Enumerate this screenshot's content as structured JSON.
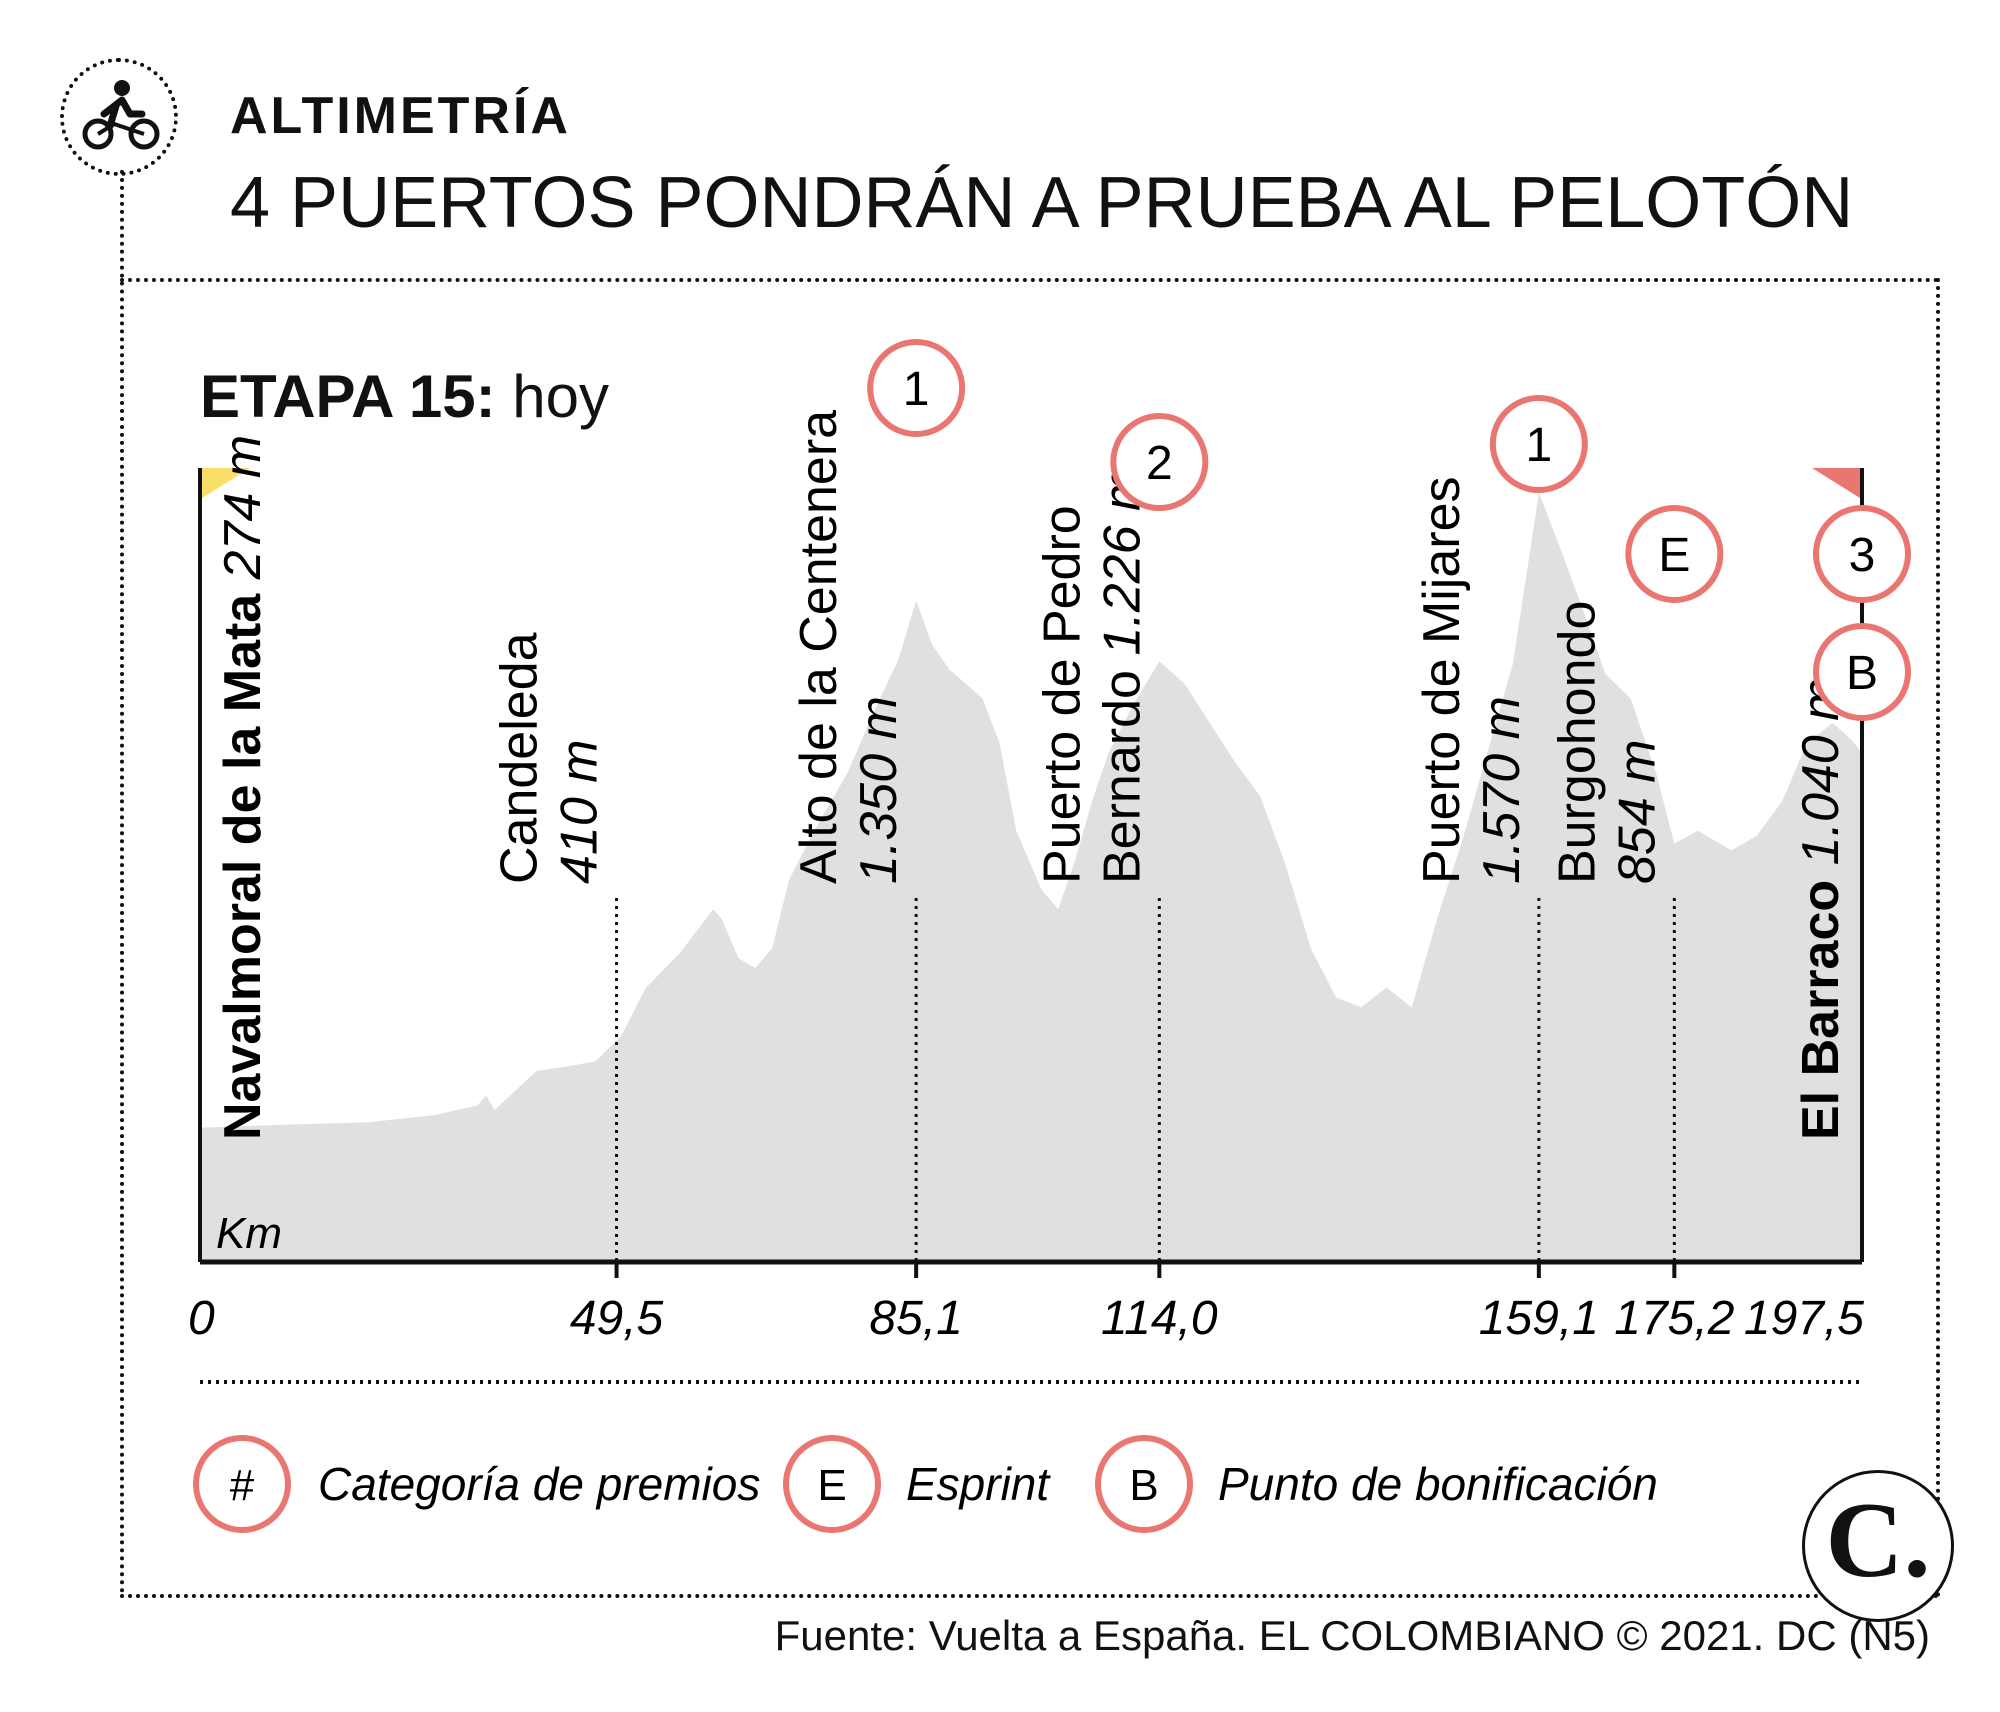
{
  "header": {
    "kicker": "ALTIMETRÍA",
    "headline": "4 PUERTOS PONDRÁN A PRUEBA AL PELOTÓN",
    "stage_label": "ETAPA 15:",
    "stage_when": "hoy",
    "icon": "cyclist-icon"
  },
  "source": "Fuente: Vuelta a España. EL COLOMBIANO © 2021. DC (N5)",
  "logo_text": "C.",
  "colors": {
    "profile_fill": "#dfe0e1",
    "badge": "#ea7672",
    "start_flag": "#f9de67",
    "finish_flag": "#ea7672"
  },
  "chart_data": {
    "type": "area",
    "title": "ETAPA 15: hoy",
    "xlabel": "Km",
    "ylabel": "",
    "xlim": [
      0,
      197.5
    ],
    "ylim": [
      0,
      1600
    ],
    "grid": false,
    "x_ticks": [
      "0",
      "49,5",
      "85,1",
      "114,0",
      "159,1",
      "175,2",
      "197,5"
    ],
    "profile": {
      "x": [
        0,
        10,
        20,
        28,
        33,
        34,
        35,
        40,
        44,
        47,
        50,
        53,
        57,
        61,
        62,
        64,
        66,
        68,
        70,
        73,
        77,
        80,
        83,
        85.1,
        87,
        89,
        91,
        93,
        95,
        97,
        100,
        102,
        104,
        106,
        108,
        111,
        114,
        117,
        120,
        123,
        126,
        129,
        132,
        135,
        138,
        141,
        144,
        147,
        150,
        153,
        156,
        159.1,
        162,
        165,
        167,
        170,
        173,
        175.2,
        178,
        182,
        185,
        188,
        191,
        194,
        196,
        197.5
      ],
      "y": [
        274,
        280,
        285,
        300,
        320,
        340,
        310,
        390,
        400,
        410,
        460,
        560,
        630,
        720,
        700,
        620,
        600,
        640,
        780,
        880,
        1000,
        1120,
        1230,
        1350,
        1260,
        1210,
        1180,
        1150,
        1060,
        880,
        760,
        720,
        820,
        940,
        1040,
        1140,
        1226,
        1180,
        1100,
        1020,
        950,
        810,
        640,
        540,
        520,
        560,
        520,
        700,
        860,
        1040,
        1220,
        1570,
        1440,
        1300,
        1200,
        1150,
        1000,
        854,
        880,
        840,
        870,
        940,
        1060,
        1100,
        1070,
        1040
      ]
    },
    "points": [
      {
        "km": 0,
        "km_label": "0",
        "name": "Navalmoral de la Mata",
        "alt": "274 m",
        "bold": true
      },
      {
        "km": 49.5,
        "km_label": "49,5",
        "name": "Candeleda",
        "alt": "410 m"
      },
      {
        "km": 85.1,
        "km_label": "85,1",
        "name": "Alto de la Centenera",
        "alt": "1.350 m"
      },
      {
        "km": 114.0,
        "km_label": "114,0",
        "name": "Puerto de Pedro",
        "name2": "Bernardo",
        "alt": "1.226 m"
      },
      {
        "km": 159.1,
        "km_label": "159,1",
        "name": "Puerto de Mijares",
        "alt": "1.570 m"
      },
      {
        "km": 175.2,
        "km_label": "175,2",
        "name": "Burgohondo",
        "alt": "854 m"
      },
      {
        "km": 197.5,
        "km_label": "197,5",
        "name": "El Barraco",
        "alt": "1.040 m",
        "bold": true
      }
    ],
    "badges": [
      {
        "text": "1",
        "km": 85.1
      },
      {
        "text": "2",
        "km": 114.0
      },
      {
        "text": "1",
        "km": 159.1
      },
      {
        "text": "E",
        "km": 175.2
      },
      {
        "text": "3",
        "km": 197.5
      },
      {
        "text": "B",
        "km": 197.5
      }
    ],
    "legend": [
      {
        "symbol": "#",
        "label": "Categoría de premios"
      },
      {
        "symbol": "E",
        "label": "Esprint"
      },
      {
        "symbol": "B",
        "label": "Punto de bonificación"
      }
    ]
  }
}
